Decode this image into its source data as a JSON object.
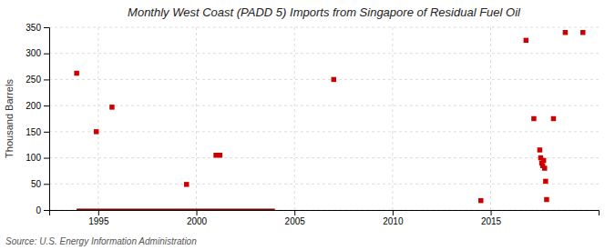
{
  "chart_data": {
    "type": "scatter",
    "title": "Monthly West Coast (PADD 5) Imports from Singapore of Residual Fuel Oil",
    "ylabel": "Thousand Barrels",
    "source": "Source: U.S. Energy Information Administration",
    "xlim": [
      1992.5,
      2020.5
    ],
    "xticks": [
      1995,
      2000,
      2005,
      2010,
      2015
    ],
    "ylim": [
      0,
      350
    ],
    "yticks": [
      0,
      50,
      100,
      150,
      200,
      250,
      300,
      350
    ],
    "grid": true,
    "series": [
      {
        "type": "scatter",
        "marker": "square",
        "color": "#cc0000",
        "x": [
          1993.9,
          1994.9,
          1995.7,
          1999.5,
          2001.0,
          2001.2,
          2007.0,
          2014.5,
          2016.8,
          2017.2,
          2017.5,
          2017.55,
          2017.6,
          2017.65,
          2017.7,
          2017.75,
          2017.8,
          2017.85,
          2018.2,
          2018.8,
          2019.7
        ],
        "values": [
          262,
          150,
          197,
          49,
          105,
          105,
          250,
          18,
          325,
          175,
          115,
          100,
          90,
          85,
          95,
          80,
          55,
          20,
          175,
          340,
          340
        ]
      },
      {
        "type": "line",
        "line_style": "solid",
        "color": "#8b0000",
        "x": [
          1993.9,
          2004.0
        ],
        "values": [
          0,
          0
        ]
      }
    ]
  }
}
